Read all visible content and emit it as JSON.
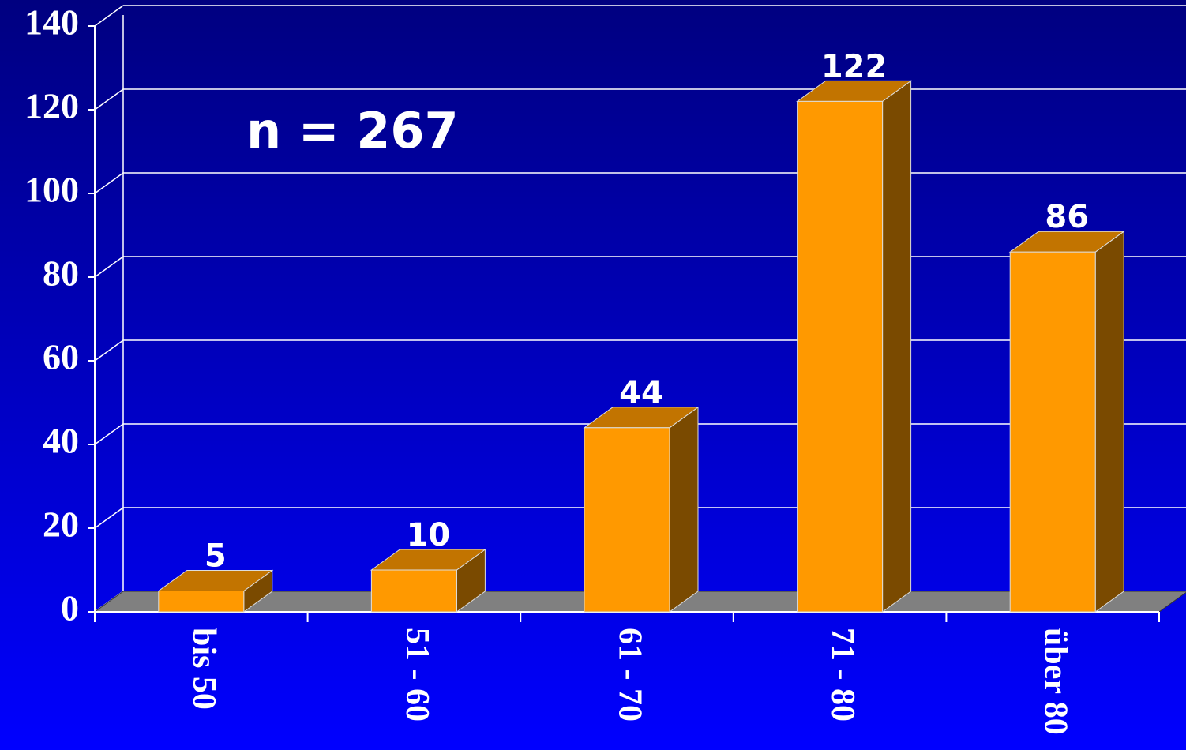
{
  "chart_data": {
    "type": "bar3d",
    "annotation": "n = 267",
    "categories": [
      "bis 50",
      "51 - 60",
      "61 - 70",
      "71 - 80",
      "über 80"
    ],
    "values": [
      5,
      10,
      44,
      122,
      86
    ],
    "color": "#ff9900",
    "ylim": [
      0,
      140
    ],
    "yticks": [
      0,
      20,
      40,
      60,
      80,
      100,
      120,
      140
    ],
    "grid": true
  }
}
